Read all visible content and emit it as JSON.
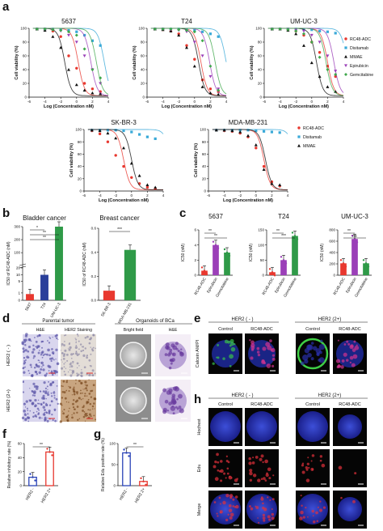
{
  "panel_labels": [
    "a",
    "b",
    "c",
    "d",
    "e",
    "f",
    "g",
    "h"
  ],
  "colors": {
    "rc48": "#e8382f",
    "disitamab": "#39a9d8",
    "mmae": "#111111",
    "epirubicin": "#9b3fb8",
    "gemcitabine": "#3ea84b"
  },
  "panel_a": {
    "ylabel": "Cell viability (%)",
    "xlabel": "Log (Concentration nM)",
    "xticks": [
      "-6",
      "-4",
      "-2",
      "0",
      "2",
      "4"
    ],
    "yticks": [
      "0",
      "20",
      "40",
      "60",
      "80",
      "100"
    ],
    "legend_top": [
      "RC48-ADC",
      "Disitamab",
      "MMAE",
      "Epirubicin",
      "Gemcitabine"
    ],
    "legend_bottom": [
      "RC48-ADC",
      "Disitamab",
      "MMAE"
    ]
  },
  "chart_data": [
    {
      "type": "scatter",
      "title": "5637",
      "xlabel": "Log (Concentration nM)",
      "ylabel": "Cell viability (%)",
      "xlim": [
        -6,
        4
      ],
      "ylim": [
        0,
        100
      ],
      "series": [
        {
          "name": "RC48-ADC",
          "ic50": 0.2,
          "x": [
            -5,
            -4,
            -3,
            -2,
            -1,
            0,
            1,
            2,
            3
          ],
          "y": [
            99,
            98,
            96,
            88,
            60,
            42,
            20,
            12,
            8
          ]
        },
        {
          "name": "Disitamab",
          "ic50": 3.5,
          "x": [
            -5,
            -4,
            -3,
            -2,
            -1,
            0,
            1,
            2,
            3
          ],
          "y": [
            99,
            99,
            99,
            98,
            97,
            95,
            90,
            82,
            75
          ]
        },
        {
          "name": "MMAE",
          "ic50": -1.5,
          "x": [
            -5,
            -4,
            -3,
            -2,
            -1,
            0,
            1,
            2,
            3
          ],
          "y": [
            99,
            97,
            88,
            72,
            40,
            18,
            10,
            6,
            5
          ]
        },
        {
          "name": "Epirubicin",
          "ic50": 1.8,
          "x": [
            -5,
            -4,
            -3,
            -2,
            -1,
            0,
            1,
            2,
            3
          ],
          "y": [
            99,
            99,
            98,
            96,
            90,
            80,
            60,
            40,
            20
          ]
        },
        {
          "name": "Gemcitabine",
          "ic50": 2.5,
          "x": [
            -5,
            -4,
            -3,
            -2,
            -1,
            0,
            1,
            2,
            3
          ],
          "y": [
            99,
            99,
            98,
            97,
            95,
            90,
            70,
            40,
            28
          ]
        }
      ]
    },
    {
      "type": "scatter",
      "title": "T24",
      "xlabel": "Log (Concentration nM)",
      "ylabel": "Cell viability (%)",
      "xlim": [
        -6,
        4
      ],
      "ylim": [
        0,
        100
      ],
      "series": [
        {
          "name": "RC48-ADC",
          "ic50": 0.8,
          "x": [
            -5,
            -4,
            -3,
            -2,
            -1,
            0,
            1,
            2,
            3
          ],
          "y": [
            99,
            98,
            96,
            92,
            75,
            55,
            25,
            12,
            8
          ]
        },
        {
          "name": "Disitamab",
          "ic50": 4,
          "x": [
            -5,
            -4,
            -3,
            -2,
            -1,
            0,
            1,
            2,
            3
          ],
          "y": [
            99,
            99,
            99,
            99,
            98,
            97,
            95,
            92,
            88
          ]
        },
        {
          "name": "MMAE",
          "ic50": 0.5,
          "x": [
            -5,
            -4,
            -3,
            -2,
            -1,
            0,
            1,
            2,
            3
          ],
          "y": [
            99,
            98,
            96,
            90,
            72,
            45,
            15,
            6,
            4
          ]
        },
        {
          "name": "Epirubicin",
          "ic50": 1.9,
          "x": [
            -5,
            -4,
            -3,
            -2,
            -1,
            0,
            1,
            2,
            3
          ],
          "y": [
            99,
            99,
            98,
            97,
            95,
            80,
            60,
            30,
            12
          ]
        },
        {
          "name": "Gemcitabine",
          "ic50": 2.6,
          "x": [
            -5,
            -4,
            -3,
            -2,
            -1,
            0,
            1,
            2,
            3
          ],
          "y": [
            99,
            99,
            99,
            98,
            97,
            95,
            82,
            45,
            10
          ]
        }
      ]
    },
    {
      "type": "scatter",
      "title": "UM-UC-3",
      "xlabel": "Log (Concentration nM)",
      "ylabel": "Cell viability (%)",
      "xlim": [
        -6,
        4
      ],
      "ylim": [
        0,
        100
      ],
      "series": [
        {
          "name": "RC48-ADC",
          "ic50": 2,
          "x": [
            -5,
            -4,
            -3,
            -2,
            -1,
            0,
            1,
            2,
            3
          ],
          "y": [
            99,
            99,
            98,
            96,
            90,
            80,
            65,
            45,
            30
          ]
        },
        {
          "name": "Disitamab",
          "ic50": 4.5,
          "x": [
            -5,
            -4,
            -3,
            -2,
            -1,
            0,
            1,
            2,
            3
          ],
          "y": [
            99,
            99,
            99,
            99,
            98,
            98,
            96,
            95,
            93
          ]
        },
        {
          "name": "MMAE",
          "ic50": 0.6,
          "x": [
            -5,
            -4,
            -3,
            -2,
            -1,
            0,
            1,
            2,
            3
          ],
          "y": [
            99,
            99,
            97,
            92,
            75,
            50,
            30,
            15,
            8
          ]
        },
        {
          "name": "Epirubicin",
          "ic50": 2.8,
          "x": [
            -5,
            -4,
            -3,
            -2,
            -1,
            0,
            1,
            2,
            3
          ],
          "y": [
            99,
            99,
            99,
            98,
            96,
            90,
            80,
            60,
            38
          ]
        },
        {
          "name": "Gemcitabine",
          "ic50": 1.8,
          "x": [
            -5,
            -4,
            -3,
            -2,
            -1,
            0,
            1,
            2,
            3
          ],
          "y": [
            99,
            99,
            98,
            96,
            92,
            80,
            58,
            40,
            33
          ]
        }
      ]
    },
    {
      "type": "scatter",
      "title": "SK-BR-3",
      "xlabel": "Log (Concentration nM)",
      "ylabel": "Cell viability (%)",
      "xlim": [
        -6,
        4
      ],
      "ylim": [
        0,
        100
      ],
      "series": [
        {
          "name": "RC48-ADC",
          "ic50": -1,
          "x": [
            -5,
            -4,
            -3,
            -2,
            -1,
            0,
            1,
            2,
            3
          ],
          "y": [
            98,
            93,
            80,
            58,
            40,
            22,
            12,
            6,
            4
          ]
        },
        {
          "name": "Disitamab",
          "ic50": 5,
          "x": [
            -5,
            -4,
            -3,
            -2,
            -1,
            0,
            1,
            2,
            3
          ],
          "y": [
            99,
            99,
            99,
            99,
            98,
            96,
            92,
            88,
            85
          ]
        },
        {
          "name": "MMAE",
          "ic50": 0,
          "x": [
            -5,
            -4,
            -3,
            -2,
            -1,
            0,
            1,
            2,
            3
          ],
          "y": [
            99,
            98,
            94,
            86,
            70,
            45,
            25,
            10,
            6
          ]
        }
      ]
    },
    {
      "type": "scatter",
      "title": "MDA-MB-231",
      "xlabel": "Log (Concentration nM)",
      "ylabel": "Cell viability (%)",
      "xlim": [
        -6,
        4
      ],
      "ylim": [
        0,
        100
      ],
      "series": [
        {
          "name": "RC48-ADC",
          "ic50": 1,
          "x": [
            -5,
            -4,
            -3,
            -2,
            -1,
            0,
            1,
            2,
            3
          ],
          "y": [
            99,
            98,
            97,
            94,
            88,
            70,
            40,
            15,
            8
          ]
        },
        {
          "name": "Disitamab",
          "ic50": 5,
          "x": [
            -5,
            -4,
            -3,
            -2,
            -1,
            0,
            1,
            2,
            3
          ],
          "y": [
            99,
            99,
            99,
            99,
            99,
            98,
            97,
            96,
            95
          ]
        },
        {
          "name": "MMAE",
          "ic50": 1.2,
          "x": [
            -5,
            -4,
            -3,
            -2,
            -1,
            0,
            1,
            2,
            3
          ],
          "y": [
            99,
            99,
            98,
            96,
            90,
            75,
            35,
            12,
            10
          ]
        }
      ]
    },
    {
      "type": "bar",
      "title": "Bladder cancer",
      "categories": [
        "5637",
        "T24",
        "UM-UC-3"
      ],
      "values": [
        0.8,
        10,
        300
      ],
      "ylabel": "IC50 of RC48-ADC (nM)",
      "sig": [
        "*",
        "**",
        "**"
      ]
    },
    {
      "type": "bar",
      "title": "Breast cancer",
      "categories": [
        "SK-BR-3",
        "MDA-MB-231"
      ],
      "values": [
        0.08,
        0.42
      ],
      "ylabel": "IC50 of RC48-ADC (nM)",
      "sig": [
        "***"
      ]
    },
    {
      "type": "bar",
      "title": "5637",
      "categories": [
        "RC48-ADC",
        "Epirubicin",
        "Gemcitabine"
      ],
      "values": [
        0.6,
        4.0,
        3.0
      ],
      "ylim": [
        0,
        6
      ],
      "yticks": [
        "0",
        "2",
        "4",
        "6"
      ],
      "ylabel": "IC50 (nM)",
      "sig": [
        "**",
        "**"
      ]
    },
    {
      "type": "bar",
      "title": "T24",
      "categories": [
        "RC48-ADC",
        "Epirubicin",
        "Gemcitabine"
      ],
      "values": [
        10,
        50,
        130
      ],
      "ylim": [
        0,
        150
      ],
      "yticks": [
        "0",
        "50",
        "100",
        "150"
      ],
      "ylabel": "IC50 (nM)",
      "sig": [
        "**",
        "***"
      ]
    },
    {
      "type": "bar",
      "title": "UM-UC-3",
      "categories": [
        "RC48-ADC",
        "Epirubicin",
        "Gemcitabine"
      ],
      "values": [
        210,
        640,
        210
      ],
      "ylim": [
        0,
        800
      ],
      "yticks": [
        "0",
        "200",
        "400",
        "600",
        "800"
      ],
      "ylabel": "IC50 (nM)",
      "sig": [
        "**",
        "ns"
      ]
    },
    {
      "type": "bar",
      "categories": [
        "HER2 -",
        "HER2 2+"
      ],
      "values": [
        12,
        48
      ],
      "ylim": [
        0,
        60
      ],
      "yticks": [
        "0",
        "20",
        "40",
        "60"
      ],
      "ylabel": "Relative inhibitory rate (%)",
      "sig": [
        "**"
      ]
    },
    {
      "type": "bar",
      "categories": [
        "HER2 -",
        "HER2 2+"
      ],
      "values": [
        78,
        10
      ],
      "ylim": [
        0,
        100
      ],
      "yticks": [
        "0",
        "50",
        "100"
      ],
      "ylabel": "Relative Edu positive rate (%)",
      "sig": [
        "**"
      ]
    }
  ],
  "panel_b": {
    "titles": [
      "Bladder cancer",
      "Breast cancer"
    ],
    "ylabel": "IC50 of RC48-ADC (nM)",
    "yticks_left": [
      "0",
      "1",
      "2",
      "5",
      "10",
      "20",
      "100",
      "200",
      "300"
    ],
    "yticks_right": [
      "0.0",
      "0.2",
      "0.4",
      "0.6"
    ]
  },
  "panel_d": {
    "header_left": "Parental tumor",
    "header_right": "Organoids of BCa",
    "cols": [
      "H&E",
      "HER2 Staining",
      "Bright field",
      "H&E"
    ],
    "rows": [
      "HER2 ( - )",
      "HER2 (2+)"
    ]
  },
  "panel_e": {
    "groups": [
      "HER2 ( - )",
      "HER2 (2+)"
    ],
    "cols": [
      "Control",
      "RC48-ADC",
      "Control",
      "RC48-ADC"
    ],
    "row": "Calcein AM/PI"
  },
  "panel_h": {
    "groups": [
      "HER2 ( - )",
      "HER2 (2+)"
    ],
    "cols": [
      "Control",
      "RC48-ADC",
      "Control",
      "RC48-ADC"
    ],
    "rows": [
      "Hochest",
      "Edu",
      "Merge"
    ]
  }
}
